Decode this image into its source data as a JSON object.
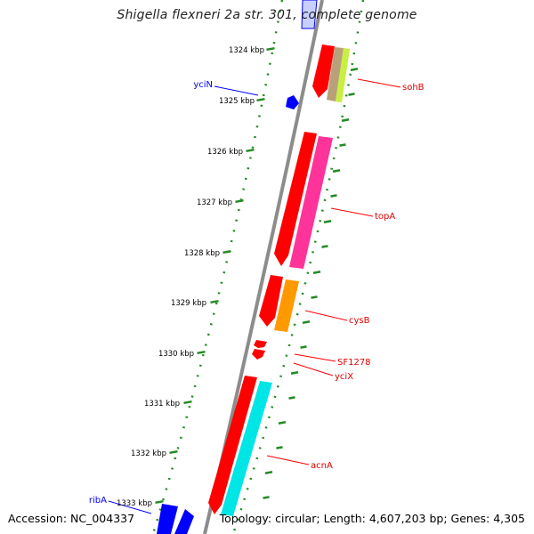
{
  "title": "Shigella flexneri 2a str. 301, complete genome",
  "footer": {
    "accession": "Accession: NC_004337",
    "summary": "Topology: circular; Length: 4,607,203 bp; Genes: 4,305"
  },
  "ruler": {
    "ticks": [
      "1324 kbp",
      "1325 kbp",
      "1326 kbp",
      "1327 kbp",
      "1328 kbp",
      "1329 kbp",
      "1330 kbp",
      "1331 kbp",
      "1332 kbp",
      "1333 kbp"
    ]
  },
  "genes": [
    {
      "name": "yciN",
      "color": "#0000ff"
    },
    {
      "name": "sohB",
      "color": "#e00000"
    },
    {
      "name": "topA",
      "color": "#e00000"
    },
    {
      "name": "cysB",
      "color": "#e00000"
    },
    {
      "name": "SF1278",
      "color": "#e00000"
    },
    {
      "name": "yciX",
      "color": "#e00000"
    },
    {
      "name": "acnA",
      "color": "#e00000"
    },
    {
      "name": "ribA",
      "color": "#0000ff"
    }
  ],
  "colors": {
    "backbone": "#8c8c8c",
    "ruler": "#228b22",
    "forward_gene": "#0000ff",
    "reverse_gene": "#ff0000",
    "sohB_cog": "#b8a07a",
    "sohB_cog2": "#c8f040",
    "topA_cog": "#ff3399",
    "cysB_cog": "#ff9900",
    "acnA_cog": "#00e5e5"
  }
}
